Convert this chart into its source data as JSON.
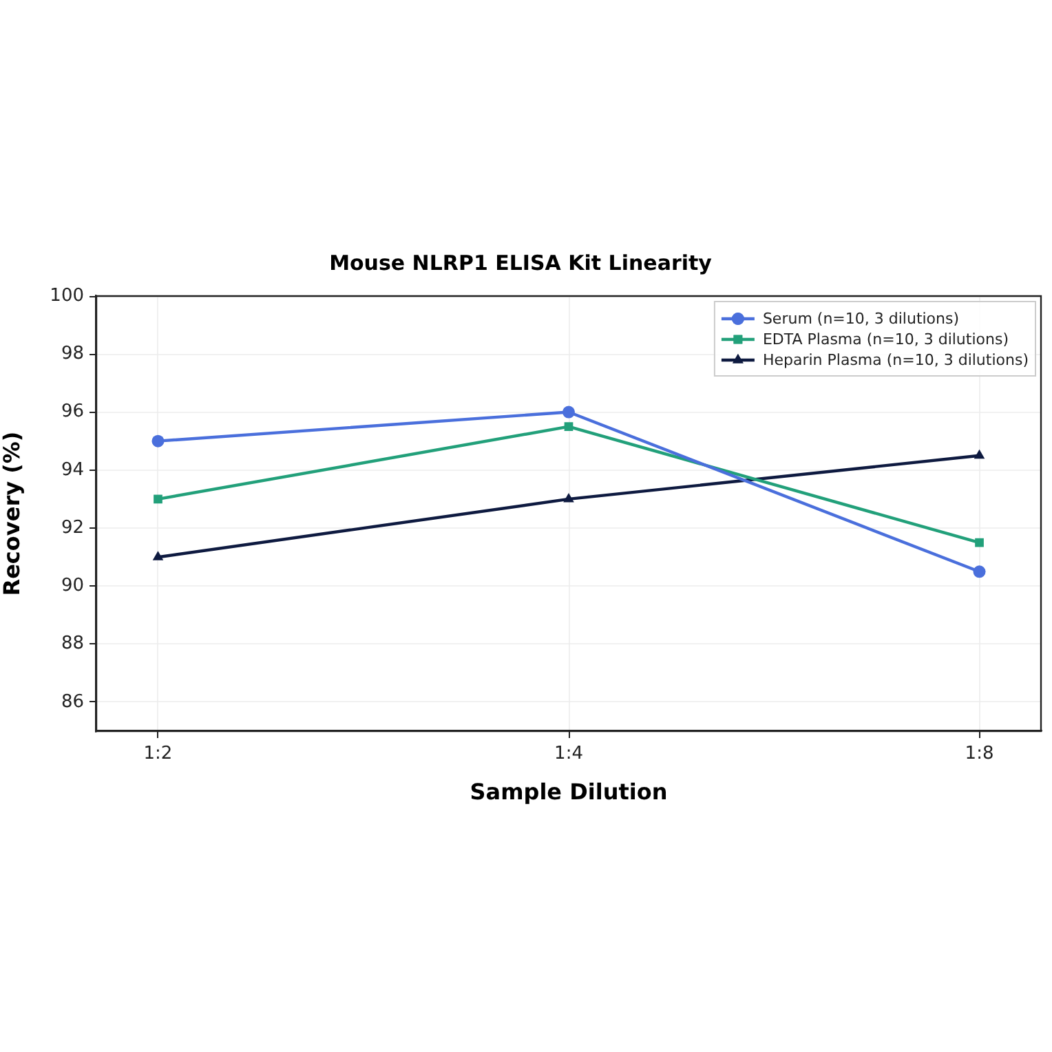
{
  "chart_data": {
    "type": "line",
    "title": "Mouse NLRP1 ELISA Kit Linearity",
    "xlabel": "Sample Dilution",
    "ylabel": "Recovery (%)",
    "categories": [
      "1:2",
      "1:4",
      "1:8"
    ],
    "series": [
      {
        "name": "Serum (n=10, 3 dilutions)",
        "color": "#4a6fdc",
        "marker": "circle",
        "values": [
          95,
          96,
          90.5
        ]
      },
      {
        "name": "EDTA Plasma (n=10, 3 dilutions)",
        "color": "#22a07a",
        "marker": "square",
        "values": [
          93,
          95.5,
          91.5
        ]
      },
      {
        "name": "Heparin Plasma (n=10, 3 dilutions)",
        "color": "#0e1a40",
        "marker": "triangle",
        "values": [
          91,
          93,
          94.5
        ]
      }
    ],
    "ylim": [
      85,
      100
    ],
    "yticks": [
      86,
      88,
      90,
      92,
      94,
      96,
      98,
      100
    ],
    "grid": true,
    "legend": "top right",
    "line_style": "solid"
  }
}
